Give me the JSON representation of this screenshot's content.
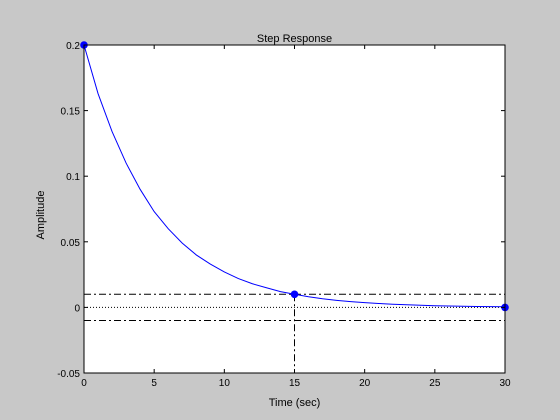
{
  "colors": {
    "figure_bg": "#c8c8c8",
    "axes_bg": "#ffffff",
    "curve": "#0000ff",
    "markers": "#0000ff",
    "guides": "#000000"
  },
  "chart_data": {
    "type": "line",
    "title": "Step Response",
    "xlabel": "Time (sec)",
    "ylabel": "Amplitude",
    "xlim": [
      0,
      30
    ],
    "ylim": [
      -0.05,
      0.2
    ],
    "xticks": [
      0,
      5,
      10,
      15,
      20,
      25,
      30
    ],
    "yticks": [
      -0.05,
      0,
      0.05,
      0.1,
      0.15,
      0.2
    ],
    "xtick_labels": [
      "0",
      "5",
      "10",
      "15",
      "20",
      "25",
      "30"
    ],
    "ytick_labels": [
      "-0.05",
      "0",
      "0.05",
      "0.1",
      "0.15",
      "0.2"
    ],
    "grid": false,
    "series": [
      {
        "x": [
          0,
          1,
          2,
          3,
          4,
          5,
          6,
          7,
          8,
          9,
          10,
          11,
          12,
          13,
          14,
          15,
          16,
          17,
          18,
          19,
          20,
          21,
          22,
          23,
          24,
          25,
          26,
          27,
          28,
          29,
          30
        ],
        "y": [
          0.2,
          0.163,
          0.134,
          0.11,
          0.09,
          0.073,
          0.06,
          0.049,
          0.04,
          0.033,
          0.027,
          0.022,
          0.018,
          0.015,
          0.012,
          0.01,
          0.0081,
          0.0066,
          0.0054,
          0.0044,
          0.0036,
          0.003,
          0.0024,
          0.002,
          0.0016,
          0.0013,
          0.0011,
          0.0009,
          0.0007,
          0.0006,
          0.0005
        ]
      }
    ],
    "markers": [
      {
        "x": 0,
        "y": 0.2
      },
      {
        "x": 15,
        "y": 0.01
      },
      {
        "x": 30,
        "y": 0
      }
    ],
    "reference_lines": {
      "horizontal_dotted": [
        0
      ],
      "horizontal_dashdot": [
        0.01,
        -0.01
      ],
      "vertical_dashdot": [
        0,
        15
      ]
    }
  }
}
